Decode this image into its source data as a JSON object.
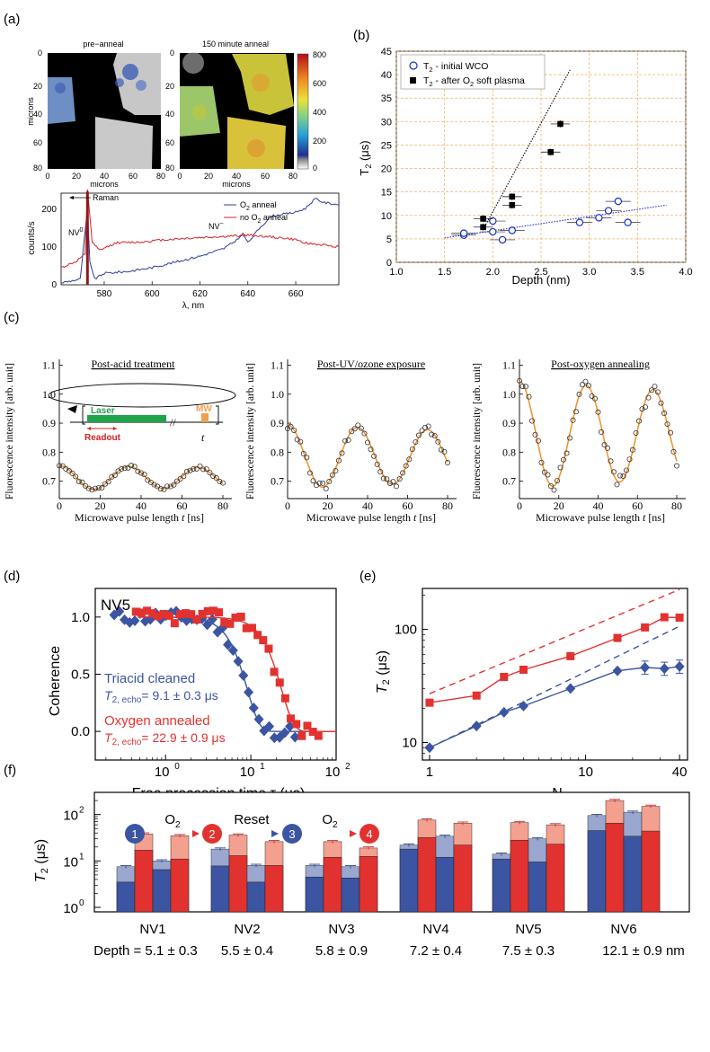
{
  "chart_data": [
    {
      "panel": "(a)",
      "type": "heatmap",
      "maps": [
        {
          "title": "pre−anneal",
          "xlabel": "microns",
          "ylabel": "microns",
          "xticks": [
            "0",
            "20",
            "40",
            "60",
            "80"
          ],
          "yticks": [
            "0",
            "20",
            "40",
            "60",
            "80"
          ]
        },
        {
          "title": "150 minute anneal",
          "xlabel": "microns",
          "xticks": [
            "0",
            "20",
            "40",
            "60",
            "80"
          ],
          "yticks": [
            "0",
            "20",
            "40",
            "60",
            "80"
          ]
        }
      ],
      "colorbar": {
        "ticks": [
          "800",
          "600",
          "400",
          "200",
          "0"
        ],
        "range": [
          0,
          800
        ]
      },
      "spectrum": {
        "type": "line",
        "xlabel": "λ, nm",
        "ylabel": "counts/s",
        "xlim": [
          562,
          678
        ],
        "ylim": [
          0,
          240
        ],
        "xticks": [
          "580",
          "600",
          "620",
          "640",
          "660"
        ],
        "yticks": [
          "0",
          "100",
          "200"
        ],
        "annotations": [
          "Raman",
          "NV",
          "NV"
        ],
        "annotation_sup": [
          "0",
          "−"
        ],
        "legend": [
          "O",
          " anneal",
          "no O",
          " anneal"
        ],
        "legend_sub": "2",
        "series": [
          {
            "name": "O2 anneal",
            "color": "#2b3f9a",
            "x": [
              562,
              570,
              573,
              574,
              576,
              580,
              590,
              600,
              610,
              620,
              630,
              636,
              638,
              640,
              645,
              650,
              655,
              660,
              664,
              668,
              672,
              678
            ],
            "y": [
              5,
              15,
              200,
              60,
              15,
              30,
              35,
              45,
              60,
              75,
              95,
              120,
              135,
              110,
              150,
              180,
              185,
              190,
              200,
              225,
              215,
              210
            ]
          },
          {
            "name": "no O2 anneal",
            "color": "#d6232a",
            "x": [
              562,
              568,
              572,
              573,
              575,
              578,
              585,
              595,
              605,
              615,
              625,
              635,
              640,
              645,
              650,
              655,
              660,
              665,
              670,
              678
            ],
            "y": [
              45,
              60,
              80,
              250,
              110,
              90,
              110,
              112,
              118,
              122,
              125,
              128,
              130,
              128,
              125,
              122,
              118,
              108,
              105,
              100
            ]
          }
        ]
      }
    },
    {
      "panel": "(b)",
      "type": "scatter",
      "xlabel": "Depth (nm)",
      "ylabel": "T",
      "ylabel_sub": "2",
      "ylabel_unit": " (μs)",
      "xlim": [
        1.0,
        4.0
      ],
      "ylim": [
        0,
        45
      ],
      "xticks": [
        "1.0",
        "1.5",
        "2.0",
        "2.5",
        "3.0",
        "3.5",
        "4.0"
      ],
      "yticks": [
        "0",
        "5",
        "10",
        "15",
        "20",
        "25",
        "30",
        "35",
        "40",
        "45"
      ],
      "legend": [
        "T",
        " - initial WCO",
        "T",
        " - after O",
        " soft plasma"
      ],
      "legend_sub": "2",
      "series": [
        {
          "name": "T2 - initial WCO",
          "color": "#1a2ec8",
          "marker": "open-circle",
          "x": [
            1.7,
            1.7,
            2.0,
            2.0,
            2.1,
            2.2,
            2.9,
            3.1,
            3.2,
            3.3,
            3.4
          ],
          "y": [
            5.8,
            6.2,
            8.8,
            6.5,
            4.8,
            6.8,
            8.5,
            9.5,
            11.0,
            13.0,
            8.5
          ]
        },
        {
          "name": "T2 - after O2 soft plasma",
          "color": "#000000",
          "marker": "filled-square",
          "x": [
            1.9,
            1.9,
            2.2,
            2.2,
            2.6,
            2.7
          ],
          "y": [
            9.3,
            7.5,
            14.0,
            12.2,
            23.5,
            29.5
          ]
        }
      ],
      "fits": [
        {
          "series": "initial WCO",
          "x": [
            1.5,
            3.8
          ],
          "y": [
            5.2,
            12.2
          ]
        },
        {
          "series": "O2 soft plasma",
          "x": [
            1.9,
            2.8
          ],
          "y": [
            7.0,
            41.0
          ]
        }
      ]
    },
    {
      "panel": "(c)",
      "type": "scatter",
      "ylabel": "Fluorescence intensity [arb. unit]",
      "xlabel": "Microwave pulse length ",
      "xlabel_var": "t",
      "xlabel_unit": " [ns]",
      "xticks": [
        "0",
        "20",
        "40",
        "60",
        "80"
      ],
      "inset": {
        "laser": "Laser",
        "readout": "Readout",
        "mw": "MW",
        "t": "t"
      },
      "plots": [
        {
          "title": "Post-acid treatment",
          "yticks": [
            "1.1",
            "1.0",
            "0.9",
            "0.8",
            "0.7"
          ],
          "ylim": [
            0.64,
            1.12
          ],
          "offset": 0.712,
          "amplitude": 0.042,
          "period": 34,
          "decay": 400
        },
        {
          "title": "Post-UV/ozone exposure",
          "yticks": [
            "1.1",
            "1.0",
            "0.9",
            "0.8",
            "0.7"
          ],
          "ylim": [
            0.64,
            1.12
          ],
          "offset": 0.785,
          "amplitude": 0.11,
          "period": 35,
          "decay": 400
        },
        {
          "title": "Post-oxygen annealing",
          "yticks": [
            "1.1",
            "1.0",
            "0.9",
            "0.8",
            "0.7"
          ],
          "ylim": [
            0.64,
            1.12
          ],
          "offset": 0.86,
          "amplitude": 0.185,
          "period": 34,
          "decay": 400
        }
      ]
    },
    {
      "panel": "(d)",
      "type": "scatter",
      "title": "NV5",
      "xlabel": "Free precession time τ (μs)",
      "ylabel": "Coherence",
      "xscale": "log",
      "xlim": [
        0.15,
        100
      ],
      "ylim": [
        -0.25,
        1.25
      ],
      "xticks": [
        "10",
        "10",
        "10"
      ],
      "xtick_exp": [
        "0",
        "1",
        "2"
      ],
      "yticks": [
        "1.0",
        "0.5",
        "0.0"
      ],
      "series": [
        {
          "name": "Triacid cleaned",
          "color": "#3b55a3",
          "marker": "diamond",
          "T2": 9.1,
          "err": 0.3,
          "label": "Triacid cleaned",
          "value": "= 9.1 ± 0.3 μs"
        },
        {
          "name": "Oxygen annealed",
          "color": "#e2322f",
          "marker": "square",
          "T2": 22.9,
          "err": 0.9,
          "label": "Oxygen annealed",
          "value": "= 22.9 ± 0.9 μs"
        }
      ],
      "t2_label": "T",
      "t2_sub": "2, echo"
    },
    {
      "panel": "(e)",
      "type": "scatter",
      "xlabel": "N",
      "ylabel": "T",
      "ylabel_sub": "2",
      "ylabel_unit": " (μs)",
      "xscale": "log",
      "yscale": "log",
      "xlim": [
        0.9,
        45
      ],
      "ylim": [
        7,
        230
      ],
      "xticks": [
        "1",
        "10",
        "40"
      ],
      "yticks": [
        "10",
        "100"
      ],
      "series": [
        {
          "name": "Oxygen annealed",
          "color": "#e2322f",
          "marker": "square",
          "x": [
            1,
            2,
            3,
            4,
            8,
            16,
            24,
            32,
            40
          ],
          "y": [
            22.5,
            26,
            38,
            44,
            58,
            84,
            104,
            128,
            127
          ]
        },
        {
          "name": "Triacid cleaned",
          "color": "#3b55a3",
          "marker": "diamond",
          "x": [
            1,
            2,
            3,
            4,
            8,
            16,
            24,
            32,
            40
          ],
          "y": [
            9,
            14,
            18.5,
            21,
            30,
            43,
            46,
            45,
            47
          ]
        }
      ]
    },
    {
      "panel": "(f)",
      "type": "bar",
      "ylabel": "T",
      "ylabel_sub": "2",
      "ylabel_unit": " (μs)",
      "yscale": "log",
      "ylim": [
        0.8,
        300
      ],
      "yticks": [
        "10",
        "10",
        "10"
      ],
      "ytick_exp": [
        "0",
        "1",
        "2"
      ],
      "process": {
        "steps": [
          "1",
          "2",
          "3",
          "4"
        ],
        "arrows": [
          "O",
          "Reset",
          "O"
        ],
        "arrow_sub": "2"
      },
      "categories": [
        "NV1",
        "NV2",
        "NV3",
        "NV4",
        "NV5",
        "NV6"
      ],
      "depths": [
        "Depth = 5.1 ± 0.3",
        "5.5 ± 0.4",
        "5.8 ± 0.9",
        "7.2 ± 0.4",
        "7.5 ± 0.3",
        "12.1 ± 0.9 nm"
      ],
      "series": [
        {
          "name": "step 1",
          "color": "#3b55a3",
          "solid": [
            3.5,
            7.8,
            4.5,
            18,
            11,
            45
          ],
          "light": [
            7.5,
            18,
            8,
            22,
            14,
            95
          ]
        },
        {
          "name": "step 2",
          "color": "#e2322f",
          "solid": [
            17,
            13,
            12,
            32,
            28,
            65
          ],
          "light": [
            38,
            36,
            26,
            76,
            67,
            200
          ]
        },
        {
          "name": "step 3",
          "color": "#3b55a3",
          "solid": [
            6.5,
            3.5,
            4.3,
            12,
            9.5,
            34
          ],
          "light": [
            10,
            8,
            7.5,
            34,
            30,
            112
          ]
        },
        {
          "name": "step 4",
          "color": "#e2322f",
          "solid": [
            11,
            8,
            12.5,
            22,
            23,
            44
          ],
          "light": [
            35,
            26,
            19,
            65,
            60,
            150
          ]
        }
      ]
    }
  ]
}
